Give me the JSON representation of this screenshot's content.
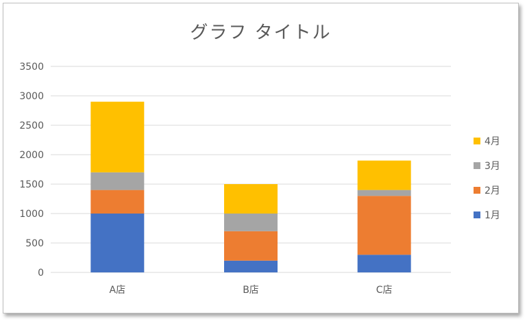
{
  "chart_data": {
    "type": "bar",
    "stacked": true,
    "title": "グラフ タイトル",
    "categories": [
      "A店",
      "B店",
      "C店"
    ],
    "series": [
      {
        "name": "1月",
        "color": "#4472C4",
        "values": [
          1000,
          200,
          300
        ]
      },
      {
        "name": "2月",
        "color": "#ED7D31",
        "values": [
          400,
          500,
          1000
        ]
      },
      {
        "name": "3月",
        "color": "#A5A5A5",
        "values": [
          300,
          300,
          100
        ]
      },
      {
        "name": "4月",
        "color": "#FFC000",
        "values": [
          1200,
          500,
          500
        ]
      }
    ],
    "y_ticks": [
      "0",
      "500",
      "1000",
      "1500",
      "2000",
      "2500",
      "3000",
      "3500"
    ],
    "ylim": [
      0,
      3500
    ],
    "grid": true,
    "legend_position": "right"
  }
}
